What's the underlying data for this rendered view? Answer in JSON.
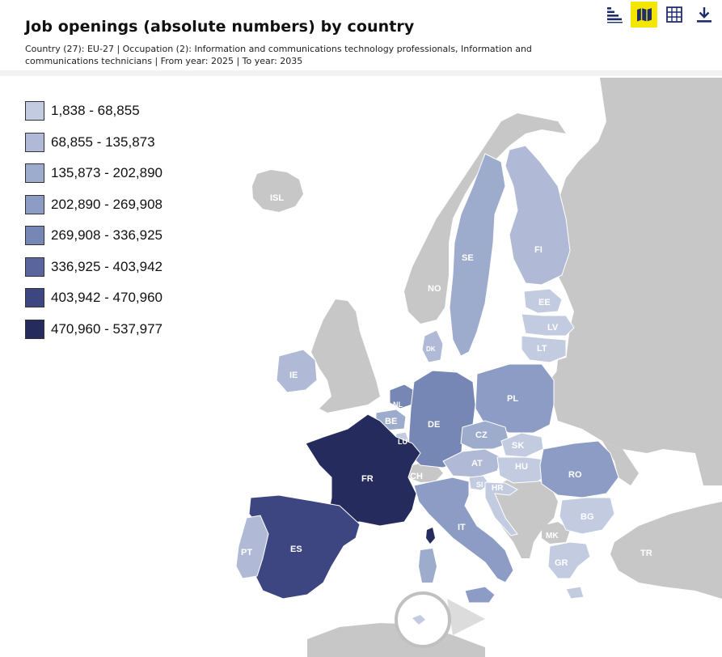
{
  "header": {
    "title": "Job openings (absolute numbers) by country",
    "subtitle": "Country (27): EU-27 | Occupation (2): Information and communications technology professionals, Information and communications technicians | From year: 2025 | To year: 2035"
  },
  "toolbar": {
    "buttons": [
      {
        "icon": "bar-chart-icon",
        "active": false
      },
      {
        "icon": "map-icon",
        "active": true
      },
      {
        "icon": "table-icon",
        "active": false
      },
      {
        "icon": "download-icon",
        "active": false
      }
    ],
    "active_color": "#f5e600"
  },
  "legend": {
    "items": [
      {
        "label": "1,838 - 68,855",
        "color": "#c3cbe0"
      },
      {
        "label": "68,855 - 135,873",
        "color": "#b0bad6"
      },
      {
        "label": "135,873 - 202,890",
        "color": "#9dabcc"
      },
      {
        "label": "202,890 - 269,908",
        "color": "#8d9cc4"
      },
      {
        "label": "269,908 - 336,925",
        "color": "#7686b5"
      },
      {
        "label": "336,925 - 403,942",
        "color": "#5a659d"
      },
      {
        "label": "403,942 - 470,960",
        "color": "#3d4680"
      },
      {
        "label": "470,960 - 537,977",
        "color": "#262b5e"
      }
    ]
  },
  "map": {
    "non_eu_color": "#c7c7c7",
    "countries": [
      {
        "code": "ISL",
        "bin": null
      },
      {
        "code": "NO",
        "bin": null
      },
      {
        "code": "SE",
        "bin": 2
      },
      {
        "code": "FI",
        "bin": 1
      },
      {
        "code": "EE",
        "bin": 0
      },
      {
        "code": "LV",
        "bin": 0
      },
      {
        "code": "LT",
        "bin": 0
      },
      {
        "code": "DK",
        "bin": 1
      },
      {
        "code": "IE",
        "bin": 1
      },
      {
        "code": "NL",
        "bin": 4
      },
      {
        "code": "BE",
        "bin": 2
      },
      {
        "code": "LU",
        "bin": 0
      },
      {
        "code": "DE",
        "bin": 4
      },
      {
        "code": "PL",
        "bin": 3
      },
      {
        "code": "CZ",
        "bin": 2
      },
      {
        "code": "SK",
        "bin": 0
      },
      {
        "code": "AT",
        "bin": 1
      },
      {
        "code": "HU",
        "bin": 0
      },
      {
        "code": "CH",
        "bin": null
      },
      {
        "code": "SI",
        "bin": 0
      },
      {
        "code": "HR",
        "bin": 0
      },
      {
        "code": "RO",
        "bin": 3
      },
      {
        "code": "FR",
        "bin": 7
      },
      {
        "code": "IT",
        "bin": 3
      },
      {
        "code": "MK",
        "bin": null
      },
      {
        "code": "BG",
        "bin": 0
      },
      {
        "code": "ES",
        "bin": 6
      },
      {
        "code": "PT",
        "bin": 1
      },
      {
        "code": "GR",
        "bin": 0
      },
      {
        "code": "TR",
        "bin": null
      }
    ]
  }
}
